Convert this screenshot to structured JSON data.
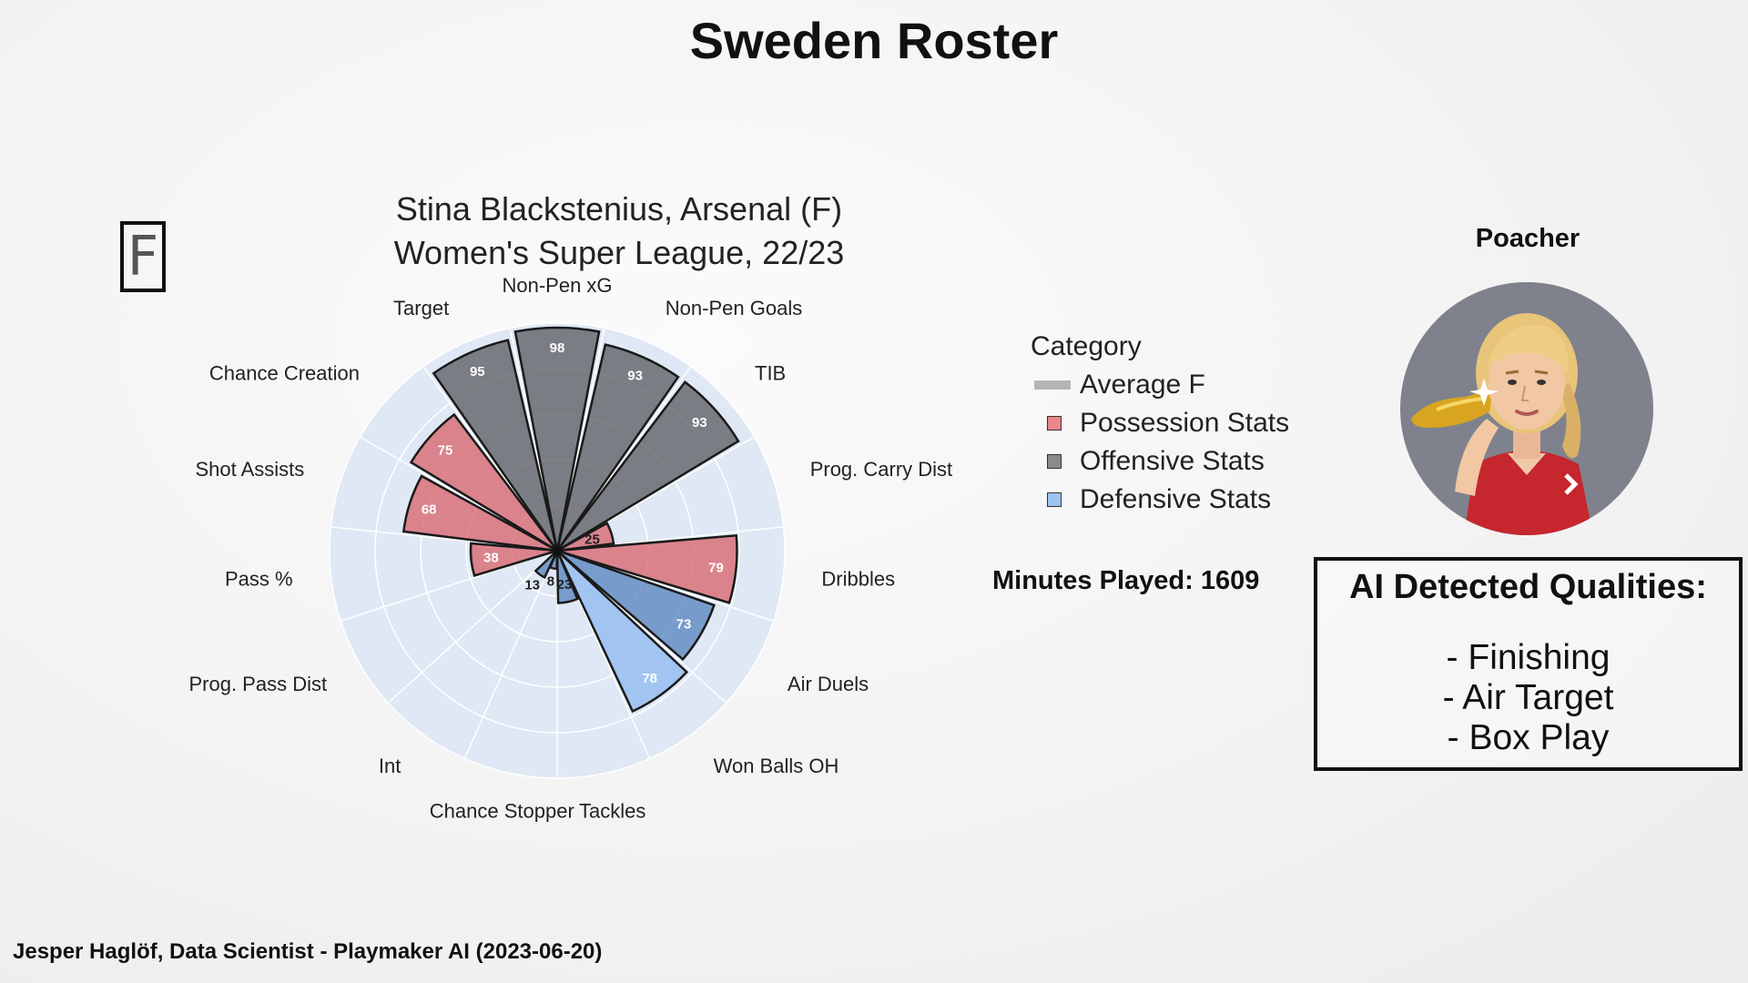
{
  "page": {
    "title": "Sweden Roster",
    "position_badge": "F"
  },
  "chart_data": {
    "type": "polar-bar",
    "title": [
      "Stina Blackstenius, Arsenal (F)",
      "Women's Super League, 22/23"
    ],
    "rmax": 100,
    "categories": [
      "Non-Pen xG",
      "Non-Pen Goals",
      "TIB",
      "Prog. Carry Dist",
      "Dribbles",
      "Air Duels",
      "Won Balls OH",
      "Tackles",
      "Chance Stopper",
      "Int",
      "Prog. Pass Dist",
      "Pass %",
      "Shot Assists",
      "Chance Creation",
      "Target"
    ],
    "values": [
      98,
      93,
      93,
      25,
      79,
      73,
      78,
      23,
      8,
      13,
      null,
      38,
      68,
      75,
      95
    ],
    "groups": [
      "Offensive Stats",
      "Offensive Stats",
      "Offensive Stats",
      "Possession Stats",
      "Possession Stats",
      "Defensive Stats",
      "Defensive Stats",
      "Defensive Stats",
      "Defensive Stats",
      "Defensive Stats",
      "Possession Stats",
      "Possession Stats",
      "Possession Stats",
      "Possession Stats",
      "Offensive Stats"
    ],
    "value_labels": [
      "98",
      "93",
      "93",
      "25",
      "79",
      "73",
      "78",
      "23",
      "8",
      "13",
      "",
      "38",
      "68",
      "75",
      "95"
    ],
    "legend": {
      "title": "Category",
      "items": [
        {
          "label": "Average F",
          "color": "#b5b5b5"
        },
        {
          "label": "Possession Stats",
          "color": "#e8858a"
        },
        {
          "label": "Offensive Stats",
          "color": "#8a8a8e"
        },
        {
          "label": "Defensive Stats",
          "color": "#9cc3f0"
        }
      ],
      "placement": "right"
    },
    "colors": {
      "Possession Stats": "#d9676e",
      "Offensive Stats": "#5f5f64",
      "Defensive Stats": "#5a86bf",
      "Defensive Stats Highlight": "#8fbaf0",
      "average": "#b5b5b5",
      "background": "#dfe8f4"
    }
  },
  "minutes": "Minutes Played: 1609",
  "profile": {
    "label": "Poacher",
    "avatar_icon": "player-avatar-icon"
  },
  "qualities": {
    "title": "AI Detected Qualities:",
    "items": [
      "- Finishing",
      "- Air Target",
      "- Box Play"
    ]
  },
  "footer": "Jesper Haglöf, Data Scientist - Playmaker AI (2023-06-20)"
}
